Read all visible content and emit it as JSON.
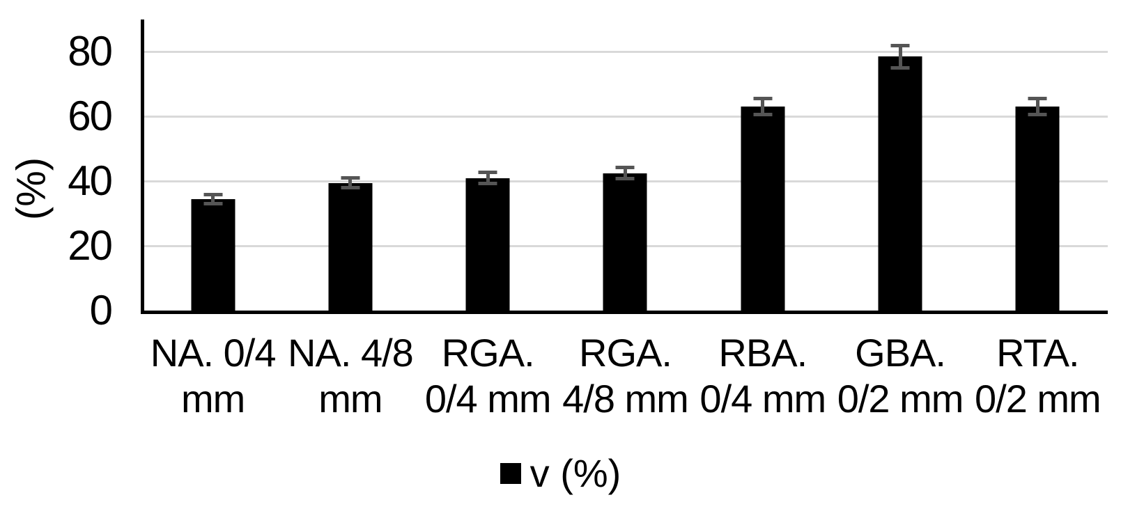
{
  "chart_data": {
    "type": "bar",
    "title": "",
    "ylabel": "(%)",
    "xlabel": "",
    "categories": [
      "NA. 0/4 mm",
      "NA. 4/8 mm",
      "RGA. 0/4 mm",
      "RGA. 4/8 mm",
      "RBA. 0/4 mm",
      "GBA. 0/2 mm",
      "RTA. 0/2 mm"
    ],
    "category_display_lines": [
      [
        "NA. 0/4",
        "mm"
      ],
      [
        "NA. 4/8",
        "mm"
      ],
      [
        "RGA.",
        "0/4 mm"
      ],
      [
        "RGA.",
        "4/8 mm"
      ],
      [
        "RBA.",
        "0/4 mm"
      ],
      [
        "GBA.",
        "0/2 mm"
      ],
      [
        "RTA.",
        "0/2 mm"
      ]
    ],
    "series": [
      {
        "name": "v (%)",
        "values": [
          34.5,
          39.5,
          41,
          42.5,
          63,
          78.5,
          63
        ],
        "error_bars": [
          2,
          2,
          2.2,
          2.2,
          3,
          4,
          3
        ]
      }
    ],
    "yticks": [
      "0",
      "20",
      "40",
      "60",
      "80"
    ],
    "ytick_values": [
      0,
      20,
      40,
      60,
      80
    ],
    "ylim": [
      0,
      90
    ],
    "grid": true,
    "legend_position": "bottom",
    "colors": {
      "bar": "#000000",
      "error_bar": "#555555",
      "gridline": "#d9d9d9",
      "axis": "#000000",
      "background": "#ffffff",
      "text": "#000000"
    }
  }
}
